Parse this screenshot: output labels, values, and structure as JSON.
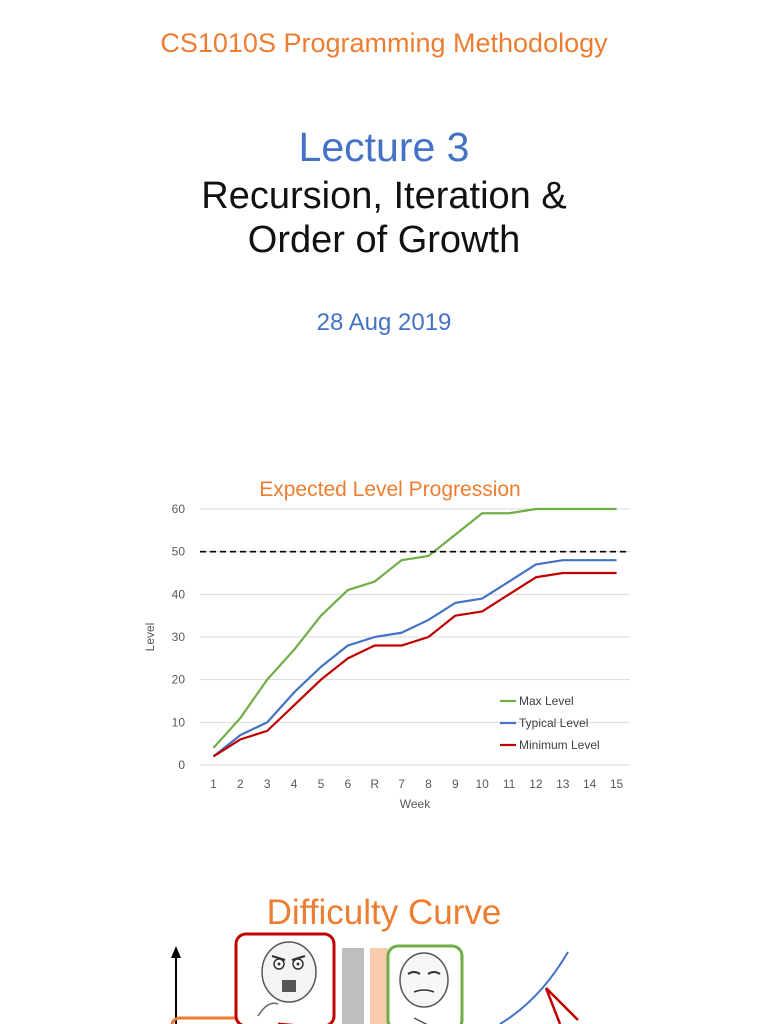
{
  "header": {
    "course": "CS1010S Programming Methodology",
    "lecture": "Lecture 3",
    "title_line1": "Recursion, Iteration &",
    "title_line2": "Order of Growth",
    "date": "28 Aug 2019"
  },
  "chart_data": {
    "type": "line",
    "title": "Expected Level Progression",
    "xlabel": "Week",
    "ylabel": "Level",
    "categories": [
      "1",
      "2",
      "3",
      "4",
      "5",
      "6",
      "R",
      "7",
      "8",
      "9",
      "10",
      "11",
      "12",
      "13",
      "14",
      "15"
    ],
    "ylim": [
      0,
      60
    ],
    "yticks": [
      0,
      10,
      20,
      30,
      40,
      50,
      60
    ],
    "grid": true,
    "legend_position": "bottom-right",
    "reference_line": {
      "value": 50,
      "style": "dashed",
      "color": "#000000"
    },
    "series": [
      {
        "name": "Max Level",
        "color": "#70AD47",
        "values": [
          4,
          11,
          20,
          27,
          35,
          41,
          43,
          48,
          49,
          54,
          59,
          59,
          60,
          60,
          60,
          60
        ]
      },
      {
        "name": "Typical Level",
        "color": "#4472C4",
        "values": [
          2,
          7,
          10,
          17,
          23,
          28,
          30,
          31,
          34,
          38,
          39,
          43,
          47,
          48,
          48,
          48
        ]
      },
      {
        "name": "Minimum Level",
        "color": "#C00000",
        "values": [
          2,
          6,
          8,
          14,
          20,
          25,
          28,
          28,
          30,
          35,
          36,
          40,
          44,
          45,
          45,
          45
        ]
      }
    ]
  },
  "difficulty": {
    "title": "Difficulty Curve"
  },
  "colors": {
    "accent_orange": "#ED7D31",
    "accent_blue": "#4472C4",
    "frame_red": "#C00000",
    "frame_green": "#70AD47"
  }
}
